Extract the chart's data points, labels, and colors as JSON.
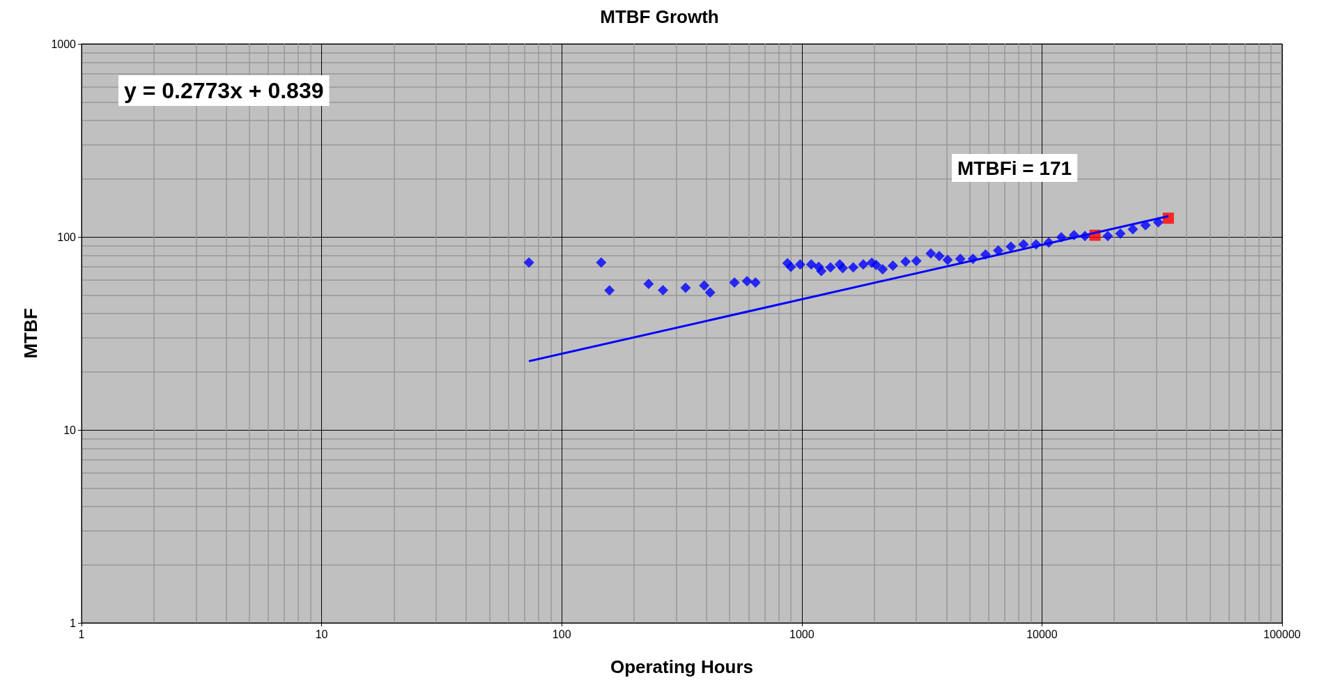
{
  "chart_data": {
    "type": "scatter",
    "title": "MTBF Growth",
    "xlabel": "Operating Hours",
    "ylabel": "MTBF",
    "log": "xy",
    "grid": true,
    "xlim": [
      1,
      100000
    ],
    "xticks": [
      1,
      10,
      100,
      1000,
      10000,
      100000
    ],
    "ylim": [
      1,
      1000
    ],
    "yticks": [
      1,
      10,
      100,
      1000
    ],
    "annotations": [
      "y = 0.2773x + 0.839",
      "MTBFi = 171"
    ],
    "series": [
      {
        "marker": "diamond",
        "color": "#0000ff",
        "x": [
          73,
          146,
          158,
          230,
          264,
          328,
          392,
          415,
          524,
          591,
          641,
          871,
          900,
          984,
          1094,
          1175,
          1205,
          1316,
          1438,
          1480,
          1637,
          1803,
          1955,
          2040,
          2170,
          2394,
          2703,
          3000,
          3443,
          3735,
          4047,
          4570,
          5157,
          5820,
          6574,
          7420,
          8380,
          9450,
          10670,
          12040,
          13600,
          15100,
          18800,
          21200,
          23900,
          27000,
          30500
        ],
        "values": [
          73.6,
          73.6,
          52.8,
          57,
          53,
          54.5,
          56,
          51.5,
          58,
          59,
          58,
          73,
          70,
          72,
          72,
          70,
          66.5,
          69.5,
          72,
          69,
          69.5,
          72,
          73.5,
          71.5,
          68,
          71,
          74.5,
          75,
          82,
          79.5,
          76,
          77,
          77,
          81,
          85,
          89,
          91.5,
          91.5,
          93.5,
          99.5,
          102,
          101,
          101,
          104,
          109.5,
          115,
          119
        ]
      },
      {
        "marker": "square",
        "color": "#ff0000",
        "x": [
          16630,
          33600
        ],
        "values": [
          102,
          125
        ]
      },
      {
        "type": "line",
        "marker": "none",
        "color": "#0000ff",
        "x": [
          73,
          33600
        ],
        "values": [
          22.7,
          128
        ]
      }
    ]
  }
}
